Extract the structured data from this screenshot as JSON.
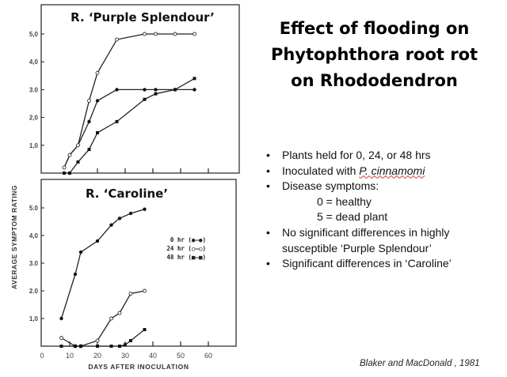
{
  "slide": {
    "title_lines": [
      "Effect of flooding on",
      "Phytophthora root rot",
      "on Rhododendron"
    ],
    "bullets": {
      "b1": "Plants held for 0, 24, or 48 hrs",
      "b2_prefix": "Inoculated with ",
      "b2_italic": "P. cinnamomi",
      "b3": "Disease symptoms:",
      "b3_sub1": "0 = healthy",
      "b3_sub2": "5 = dead plant",
      "b4_line1": "No significant differences in highly",
      "b4_line2": "susceptible ‘Purple Splendour’",
      "b5": "Significant differences in ‘Caroline’"
    },
    "citation": "Blaker and MacDonald , 1981"
  },
  "chart_data": [
    {
      "type": "line",
      "title": "R. ‘Purple Splendour’",
      "ylabel": "AVERAGE SYMPTOM RATING",
      "xlabel": "",
      "xlim": [
        0,
        70
      ],
      "ylim": [
        0,
        5.8
      ],
      "yticks": [
        1,
        2,
        3,
        4,
        5
      ],
      "ytick_labels": [
        "1,0",
        "2,0",
        "3.0",
        "4,0",
        "5,0"
      ],
      "xticks": [
        20,
        30,
        40,
        50,
        60
      ],
      "series": [
        {
          "marker": "filled-circle",
          "x": [
            8,
            10,
            13,
            17,
            20,
            27,
            37,
            41,
            48,
            55
          ],
          "y": [
            0.2,
            0.65,
            1.0,
            1.85,
            2.6,
            3.0,
            3.0,
            3.0,
            3.0,
            3.0
          ]
        },
        {
          "marker": "open-circle",
          "x": [
            8,
            10,
            13,
            17,
            20,
            27,
            37,
            41,
            48,
            55
          ],
          "y": [
            0.2,
            0.65,
            1.0,
            2.6,
            3.6,
            4.8,
            5.0,
            5.0,
            5.0,
            5.0
          ]
        },
        {
          "marker": "filled-square",
          "x": [
            8,
            10,
            13,
            17,
            20,
            27,
            37,
            41,
            48,
            55
          ],
          "y": [
            0,
            0,
            0.4,
            0.85,
            1.45,
            1.85,
            2.65,
            2.85,
            3.0,
            3.4
          ]
        }
      ]
    },
    {
      "type": "line",
      "title": "R. ‘Caroline’",
      "xlabel": "DAYS AFTER INOCULATION",
      "xlim": [
        0,
        70
      ],
      "ylim": [
        0,
        5.8
      ],
      "yticks": [
        1,
        2,
        3,
        4,
        5
      ],
      "ytick_labels": [
        "1,0",
        "2.0",
        "3.0",
        "4,0",
        "5.0"
      ],
      "xticks": [
        0,
        10,
        20,
        30,
        40,
        50,
        60
      ],
      "xtick_labels": [
        "0",
        "10",
        "20",
        "30",
        "40",
        "50",
        "60"
      ],
      "legend": {
        "placement": "right",
        "entries": [
          "0 hr (●—●)",
          "24 hr (○—○)",
          "48 hr (■—■)"
        ]
      },
      "series": [
        {
          "name": "0 hr",
          "marker": "filled-circle",
          "x": [
            7,
            12,
            14,
            20,
            25,
            28,
            32,
            37
          ],
          "y": [
            1.0,
            2.6,
            3.4,
            3.8,
            4.38,
            4.62,
            4.8,
            4.95
          ]
        },
        {
          "name": "24 hr",
          "marker": "open-circle",
          "x": [
            7,
            12,
            14,
            20,
            25,
            28,
            32,
            37
          ],
          "y": [
            0.3,
            0,
            0,
            0.2,
            1.0,
            1.2,
            1.9,
            2.0
          ]
        },
        {
          "name": "48 hr",
          "marker": "filled-square",
          "x": [
            7,
            12,
            14,
            20,
            25,
            28,
            30,
            32,
            37
          ],
          "y": [
            0,
            0,
            0,
            0,
            0,
            0,
            0.05,
            0.2,
            0.6
          ]
        }
      ]
    }
  ]
}
